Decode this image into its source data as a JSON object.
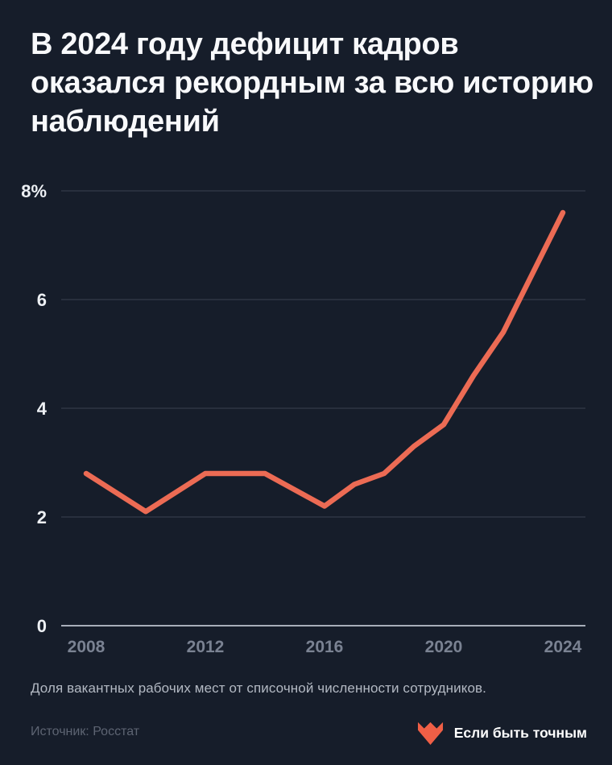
{
  "page": {
    "background": "#161D2A",
    "title": "В 2024 году дефицит кадров оказался рекордным за всю историю наблюдений",
    "caption": "Доля вакантных рабочих мест от списочной численности сотрудников.",
    "source": "Источник: Росстат",
    "logo": {
      "text": "Если быть точным",
      "heart_color": "#EF5F46"
    }
  },
  "chart_data": {
    "type": "line",
    "title": "В 2024 году дефицит кадров оказался рекордным за всю историю наблюдений",
    "xlabel": "",
    "ylabel": "",
    "x": [
      2008,
      2009,
      2010,
      2011,
      2012,
      2013,
      2014,
      2015,
      2016,
      2017,
      2018,
      2019,
      2020,
      2021,
      2022,
      2023,
      2024
    ],
    "series": [
      {
        "name": "Доля вакантных рабочих мест, %",
        "values": [
          2.8,
          2.45,
          2.1,
          2.45,
          2.8,
          2.8,
          2.8,
          2.5,
          2.2,
          2.6,
          2.8,
          3.3,
          3.7,
          4.6,
          5.4,
          6.5,
          7.6
        ]
      }
    ],
    "x_ticks": [
      2008,
      2012,
      2016,
      2020,
      2024
    ],
    "y_ticks": [
      {
        "value": 8,
        "label": "8%"
      },
      {
        "value": 6,
        "label": "6"
      },
      {
        "value": 4,
        "label": "4"
      },
      {
        "value": 2,
        "label": "2"
      },
      {
        "value": 0,
        "label": "0"
      }
    ],
    "xlim": [
      2008,
      2024
    ],
    "ylim": [
      0,
      8
    ],
    "grid": true,
    "legend": false,
    "line_color": "#EC6B54",
    "grid_color": "#3A4150",
    "baseline_color": "#A8AEB9"
  }
}
